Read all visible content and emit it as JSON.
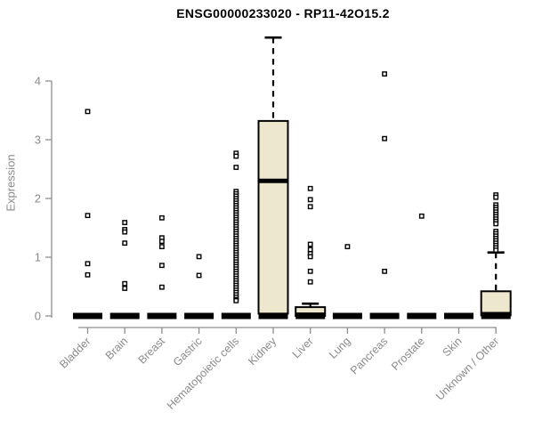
{
  "chart_data": {
    "type": "boxplot",
    "title": "ENSG00000233020 - RP11-42O15.2",
    "ylabel": "Expression",
    "xlabel": "",
    "ylim": [
      0,
      4.8
    ],
    "yticks": [
      0,
      1,
      2,
      3,
      4
    ],
    "grid": false,
    "legend": false,
    "colors": {
      "box_fill": "#EDE7CD",
      "box_stroke": "#000000",
      "axis_line": "#8e8e8e",
      "axis_text": "#8a8a8e",
      "outlier_fill": "#ffffff",
      "outlier_stroke": "#000000",
      "title_text": "#000000"
    },
    "categories": [
      "Bladder",
      "Brain",
      "Breast",
      "Gastric",
      "Hematopoietic cells",
      "Kidney",
      "Liver",
      "Lung",
      "Pancreas",
      "Prostate",
      "Skin",
      "Unknown / Other"
    ],
    "series": [
      {
        "name": "Bladder",
        "collapsed": true,
        "low": 0,
        "q1": 0,
        "median": 0.01,
        "q3": 0.03,
        "high": 0.03,
        "outliers": [
          3.48,
          1.71,
          0.89,
          0.7
        ]
      },
      {
        "name": "Brain",
        "collapsed": true,
        "low": 0,
        "q1": 0,
        "median": 0.01,
        "q3": 0.03,
        "high": 0.03,
        "outliers": [
          1.59,
          1.47,
          1.43,
          1.24,
          0.55,
          0.47
        ]
      },
      {
        "name": "Breast",
        "collapsed": true,
        "low": 0,
        "q1": 0,
        "median": 0.01,
        "q3": 0.03,
        "high": 0.03,
        "outliers": [
          1.67,
          1.33,
          1.27,
          1.18,
          0.86,
          0.49
        ]
      },
      {
        "name": "Gastric",
        "collapsed": true,
        "low": 0,
        "q1": 0,
        "median": 0.01,
        "q3": 0.03,
        "high": 0.03,
        "outliers": [
          1.01,
          0.69
        ]
      },
      {
        "name": "Hematopoietic cells",
        "collapsed": true,
        "low": 0,
        "q1": 0,
        "median": 0.01,
        "q3": 0.03,
        "high": 0.03,
        "outliers": [
          2.77,
          2.72,
          2.53,
          2.12,
          2.08,
          2.04,
          2.0,
          1.96,
          1.92,
          1.88,
          1.84,
          1.8,
          1.76,
          1.72,
          1.68,
          1.64,
          1.6,
          1.56,
          1.52,
          1.48,
          1.44,
          1.4,
          1.36,
          1.32,
          1.28,
          1.24,
          1.2,
          1.16,
          1.12,
          1.08,
          1.04,
          1.0,
          0.96,
          0.92,
          0.88,
          0.84,
          0.8,
          0.76,
          0.72,
          0.68,
          0.64,
          0.6,
          0.56,
          0.52,
          0.48,
          0.44,
          0.4,
          0.36,
          0.32,
          0.28,
          0.26
        ]
      },
      {
        "name": "Kidney",
        "collapsed": false,
        "low": 0.02,
        "q1": 0.04,
        "median": 2.3,
        "q3": 3.32,
        "high": 4.74,
        "outliers": []
      },
      {
        "name": "Liver",
        "collapsed": false,
        "low": 0,
        "q1": 0,
        "median": 0.02,
        "q3": 0.15,
        "high": 0.21,
        "outliers": [
          2.17,
          1.98,
          1.86,
          1.22,
          1.13,
          1.06,
          1.01,
          0.76,
          0.58
        ]
      },
      {
        "name": "Lung",
        "collapsed": true,
        "low": 0,
        "q1": 0,
        "median": 0.01,
        "q3": 0.03,
        "high": 0.03,
        "outliers": [
          1.18
        ]
      },
      {
        "name": "Pancreas",
        "collapsed": true,
        "low": 0,
        "q1": 0,
        "median": 0.01,
        "q3": 0.03,
        "high": 0.03,
        "outliers": [
          4.12,
          3.02,
          0.76
        ]
      },
      {
        "name": "Prostate",
        "collapsed": true,
        "low": 0,
        "q1": 0,
        "median": 0.01,
        "q3": 0.03,
        "high": 0.03,
        "outliers": [
          1.7
        ]
      },
      {
        "name": "Skin",
        "collapsed": true,
        "low": 0,
        "q1": 0,
        "median": 0.01,
        "q3": 0.03,
        "high": 0.03,
        "outliers": []
      },
      {
        "name": "Unknown / Other",
        "collapsed": false,
        "low": 0,
        "q1": 0.01,
        "median": 0.03,
        "q3": 0.42,
        "high": 1.08,
        "outliers": [
          2.06,
          2.02,
          1.89,
          1.85,
          1.81,
          1.77,
          1.73,
          1.69,
          1.65,
          1.61,
          1.57,
          1.44,
          1.4,
          1.36,
          1.32,
          1.28,
          1.24,
          1.2,
          1.16,
          1.12
        ]
      }
    ]
  }
}
